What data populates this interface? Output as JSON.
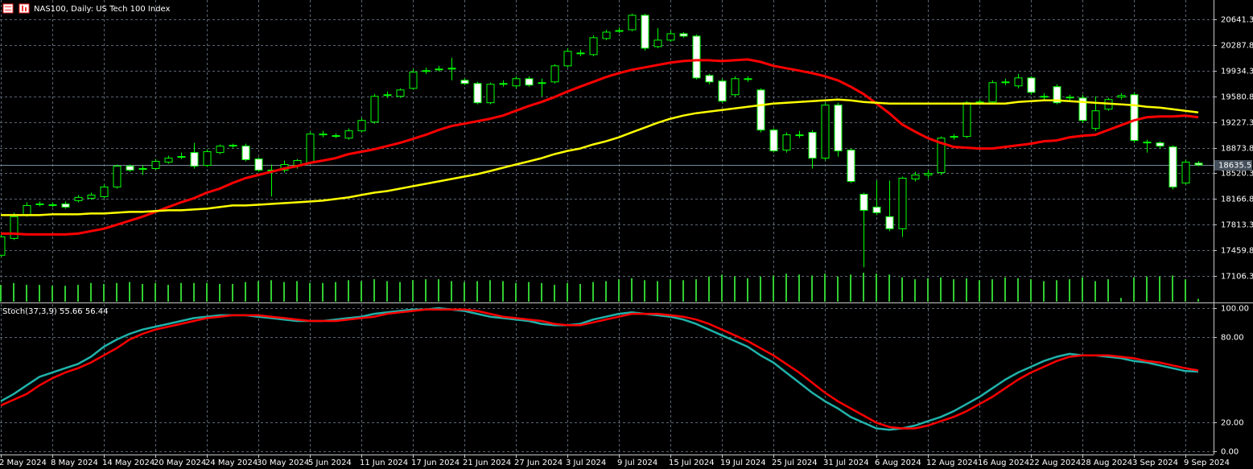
{
  "chart_data": [
    {
      "type": "candlestick",
      "title": "NAS100, Daily:  US Tech 100 Index",
      "categories": [
        "2 May 2024",
        null,
        null,
        null,
        "8 May 2024",
        null,
        null,
        null,
        "14 May 2024",
        null,
        null,
        null,
        "20 May 2024",
        null,
        null,
        null,
        "24 May 2024",
        null,
        null,
        null,
        "30 May 2024",
        null,
        null,
        null,
        "5 Jun 2024",
        null,
        null,
        null,
        "11 Jun 2024",
        null,
        null,
        null,
        "17 Jun 2024",
        null,
        null,
        null,
        "21 Jun 2024",
        null,
        null,
        null,
        "27 Jun 2024",
        null,
        null,
        null,
        "3 Jul 2024",
        null,
        null,
        null,
        "9 Jul 2024",
        null,
        null,
        null,
        "15 Jul 2024",
        null,
        null,
        null,
        "19 Jul 2024",
        null,
        null,
        null,
        "25 Jul 2024",
        null,
        null,
        null,
        "31 Jul 2024",
        null,
        null,
        null,
        "6 Aug 2024",
        null,
        null,
        null,
        "12 Aug 2024",
        null,
        null,
        null,
        "16 Aug 2024",
        null,
        null,
        null,
        "22 Aug 2024",
        null,
        null,
        null,
        "28 Aug 2024",
        null,
        null,
        null,
        "3 Sep 2024",
        null,
        null,
        null,
        "9 Sep 2024",
        null
      ],
      "open": [
        17392,
        17624,
        17945,
        18088,
        18077,
        18099,
        18144,
        18177,
        18199,
        18332,
        18619,
        18575,
        18586,
        18674,
        18740,
        18806,
        18630,
        18806,
        18895,
        18895,
        18718,
        18564,
        18564,
        18630,
        18663,
        19050,
        19028,
        19005,
        19105,
        19226,
        19591,
        19580,
        19690,
        19923,
        19945,
        19956,
        19801,
        19757,
        19492,
        19746,
        19724,
        19823,
        19757,
        19779,
        20000,
        20166,
        20155,
        20376,
        20475,
        20497,
        20696,
        20265,
        20354,
        20442,
        20409,
        19867,
        19790,
        19602,
        19812,
        19668,
        19116,
        18840,
        19039,
        19083,
        18729,
        19459,
        18840,
        18232,
        18055,
        17923,
        17757,
        18442,
        18497,
        18530,
        19016,
        19028,
        19492,
        19503,
        19768,
        19724,
        19834,
        19580,
        19713,
        19558,
        19558,
        19138,
        19403,
        19569,
        19602,
        18939,
        18939,
        18884,
        18387,
        18660
      ],
      "high": [
        17702,
        17978,
        18121,
        18132,
        18121,
        18132,
        18221,
        18254,
        18365,
        18641,
        18641,
        18630,
        18718,
        18762,
        18806,
        18939,
        18851,
        18917,
        18928,
        18928,
        18740,
        18641,
        18696,
        18718,
        19094,
        19105,
        19072,
        19138,
        19282,
        19613,
        19646,
        19690,
        19956,
        19978,
        20000,
        20110,
        19823,
        19779,
        19768,
        19801,
        19856,
        19856,
        19823,
        20022,
        20243,
        20221,
        20420,
        20497,
        20530,
        20718,
        20718,
        20519,
        20486,
        20464,
        20431,
        19889,
        19823,
        19856,
        19856,
        19690,
        19138,
        19083,
        19105,
        19116,
        19492,
        19492,
        18862,
        18254,
        18420,
        18420,
        18475,
        18541,
        18564,
        19028,
        19061,
        19514,
        19536,
        19801,
        19823,
        19889,
        19856,
        19624,
        19746,
        19602,
        19602,
        19580,
        19558,
        19624,
        19635,
        18983,
        18961,
        18906,
        18707,
        18690
      ],
      "low": [
        17370,
        17602,
        17923,
        18066,
        18055,
        18033,
        18121,
        18155,
        18177,
        18309,
        18541,
        18497,
        18564,
        18652,
        18718,
        18586,
        18608,
        18784,
        18873,
        18685,
        18541,
        18199,
        18530,
        18586,
        18641,
        19016,
        19005,
        18983,
        19083,
        19204,
        19558,
        19558,
        19668,
        19889,
        19923,
        19801,
        19735,
        19470,
        19470,
        19713,
        19690,
        19713,
        19580,
        19757,
        19978,
        20133,
        20133,
        20354,
        20453,
        20475,
        20210,
        20243,
        20331,
        20387,
        19812,
        19746,
        19492,
        19580,
        19779,
        19083,
        18806,
        18806,
        19005,
        18586,
        18696,
        18751,
        18387,
        17226,
        17945,
        17724,
        17646,
        18409,
        18453,
        18497,
        18983,
        19005,
        19459,
        19470,
        19735,
        19690,
        19602,
        19536,
        19470,
        19514,
        19215,
        19105,
        19381,
        19536,
        18939,
        18806,
        18862,
        18299,
        18365,
        18620
      ],
      "close": [
        17646,
        17923,
        18077,
        18099,
        18088,
        18055,
        18189,
        18221,
        18332,
        18619,
        18564,
        18586,
        18685,
        18729,
        18751,
        18619,
        18818,
        18895,
        18906,
        18708,
        18564,
        18553,
        18641,
        18696,
        19061,
        19061,
        19039,
        19105,
        19248,
        19580,
        19602,
        19668,
        19912,
        19934,
        19956,
        19967,
        19757,
        19492,
        19746,
        19757,
        19823,
        19735,
        19768,
        20000,
        20199,
        20177,
        20387,
        20464,
        20486,
        20696,
        20243,
        20354,
        20442,
        20409,
        19834,
        19779,
        19514,
        19823,
        19823,
        19116,
        18829,
        19050,
        19050,
        18729,
        19459,
        18829,
        18409,
        18011,
        17978,
        17757,
        18453,
        18497,
        18519,
        19005,
        19028,
        19492,
        19503,
        19768,
        19779,
        19834,
        19635,
        19569,
        19492,
        19569,
        19248,
        19381,
        19536,
        19591,
        18972,
        18950,
        18895,
        18332,
        18674,
        18635.5
      ],
      "up_color": "#00ff00",
      "down_fill": "#ffffff",
      "up_fill": "#000000",
      "series": [
        {
          "color": "#ff0000",
          "values": [
            17690,
            17690,
            17679,
            17679,
            17679,
            17679,
            17690,
            17724,
            17757,
            17812,
            17867,
            17922,
            17989,
            18055,
            18121,
            18177,
            18254,
            18309,
            18387,
            18453,
            18497,
            18541,
            18585,
            18619,
            18663,
            18696,
            18729,
            18784,
            18817,
            18851,
            18895,
            18939,
            18994,
            19050,
            19116,
            19171,
            19204,
            19237,
            19271,
            19315,
            19381,
            19447,
            19503,
            19569,
            19646,
            19713,
            19779,
            19845,
            19900,
            19945,
            19978,
            20011,
            20044,
            20066,
            20077,
            20077,
            20066,
            20077,
            20088,
            20055,
            20000,
            19967,
            19934,
            19900,
            19856,
            19801,
            19713,
            19613,
            19481,
            19348,
            19193,
            19094,
            19005,
            18939,
            18884,
            18873,
            18862,
            18862,
            18884,
            18906,
            18928,
            18961,
            18972,
            19016,
            19038,
            19050,
            19116,
            19182,
            19248,
            19293,
            19304,
            19304,
            19315,
            19293
          ]
        },
        {
          "color": "#ffff00",
          "values": [
            17945,
            17945,
            17945,
            17945,
            17956,
            17956,
            17956,
            17967,
            17967,
            17978,
            17989,
            17989,
            18000,
            18011,
            18011,
            18022,
            18033,
            18055,
            18077,
            18077,
            18088,
            18099,
            18110,
            18121,
            18132,
            18144,
            18166,
            18188,
            18221,
            18254,
            18276,
            18309,
            18342,
            18376,
            18409,
            18442,
            18475,
            18508,
            18552,
            18597,
            18641,
            18685,
            18729,
            18784,
            18829,
            18862,
            18917,
            18961,
            19016,
            19083,
            19149,
            19215,
            19271,
            19315,
            19348,
            19370,
            19392,
            19414,
            19436,
            19458,
            19481,
            19492,
            19503,
            19514,
            19525,
            19536,
            19525,
            19503,
            19492,
            19481,
            19481,
            19481,
            19481,
            19481,
            19481,
            19481,
            19481,
            19481,
            19481,
            19503,
            19514,
            19525,
            19525,
            19514,
            19503,
            19492,
            19481,
            19470,
            19458,
            19436,
            19425,
            19403,
            19381,
            19359
          ]
        }
      ],
      "volume": {
        "color": "#32cd32",
        "values": [
          18,
          20,
          18,
          18,
          17,
          17,
          18,
          20,
          19,
          20,
          21,
          19,
          20,
          18,
          20,
          20,
          20,
          19,
          19,
          21,
          22,
          23,
          21,
          22,
          20,
          20,
          21,
          23,
          22,
          24,
          22,
          21,
          23,
          24,
          24,
          22,
          21,
          22,
          23,
          22,
          20,
          21,
          20,
          18,
          20,
          19,
          21,
          22,
          24,
          25,
          23,
          22,
          24,
          23,
          24,
          27,
          29,
          27,
          25,
          27,
          28,
          30,
          29,
          28,
          30,
          27,
          29,
          31,
          30,
          29,
          26,
          24,
          25,
          26,
          24,
          25,
          23,
          24,
          26,
          25,
          24,
          22,
          23,
          24,
          26,
          22,
          24,
          4,
          26,
          27,
          27,
          28,
          24,
          3
        ]
      },
      "last_price": 18635.5,
      "ylim": [
        16741.7,
        20906.4
      ],
      "yticks": [
        17106.3,
        17459.8,
        17813.3,
        18166.8,
        18520.3,
        18873.8,
        19227.3,
        19580.8,
        19934.3,
        20287.8,
        20641.3
      ],
      "grid": true
    },
    {
      "type": "line",
      "title": "Stoch(37,3,9)",
      "series": [
        {
          "color": "#20b2aa",
          "values": [
            35,
            40,
            46,
            52,
            55,
            58,
            61,
            66,
            73,
            78,
            82,
            85,
            87,
            89,
            91,
            93,
            94,
            95,
            95,
            95,
            94,
            93,
            92,
            91,
            91,
            91,
            92,
            93,
            94,
            96,
            97,
            98,
            99,
            99,
            100,
            99,
            98,
            96,
            94,
            93,
            92,
            91,
            89,
            88,
            88,
            89,
            92,
            94,
            96,
            97,
            96,
            95,
            94,
            92,
            89,
            85,
            81,
            77,
            73,
            67,
            62,
            55,
            48,
            41,
            35,
            30,
            24,
            20,
            16,
            15,
            16,
            18,
            21,
            24,
            28,
            33,
            38,
            44,
            50,
            55,
            59,
            63,
            66,
            68,
            67,
            67,
            66,
            65,
            63,
            62,
            60,
            58,
            56,
            55.66
          ]
        },
        {
          "color": "#ff0000",
          "values": [
            32,
            36,
            40,
            46,
            51,
            55,
            58,
            62,
            67,
            72,
            78,
            82,
            85,
            87,
            89,
            91,
            93,
            94,
            95,
            95,
            95,
            94,
            93,
            92,
            91,
            91,
            91,
            92,
            93,
            94,
            96,
            97,
            98,
            99,
            99,
            99,
            99,
            98,
            96,
            94,
            93,
            92,
            91,
            89,
            88,
            88,
            90,
            92,
            94,
            96,
            96,
            96,
            95,
            94,
            92,
            89,
            85,
            81,
            77,
            72,
            67,
            61,
            55,
            48,
            41,
            35,
            30,
            25,
            20,
            17,
            16,
            16,
            18,
            21,
            24,
            28,
            33,
            38,
            44,
            50,
            55,
            59,
            63,
            66,
            67,
            67,
            67,
            66,
            65,
            63,
            62,
            60,
            58,
            56.44
          ]
        }
      ],
      "ylim": [
        -2.25,
        102.8
      ],
      "yticks": [
        {
          "value": 0,
          "label": "0.00"
        },
        {
          "value": 20,
          "label": "20.00"
        },
        {
          "value": 80,
          "label": "80.00"
        },
        {
          "value": 100,
          "label": "100.00"
        }
      ],
      "grid": true
    }
  ]
}
